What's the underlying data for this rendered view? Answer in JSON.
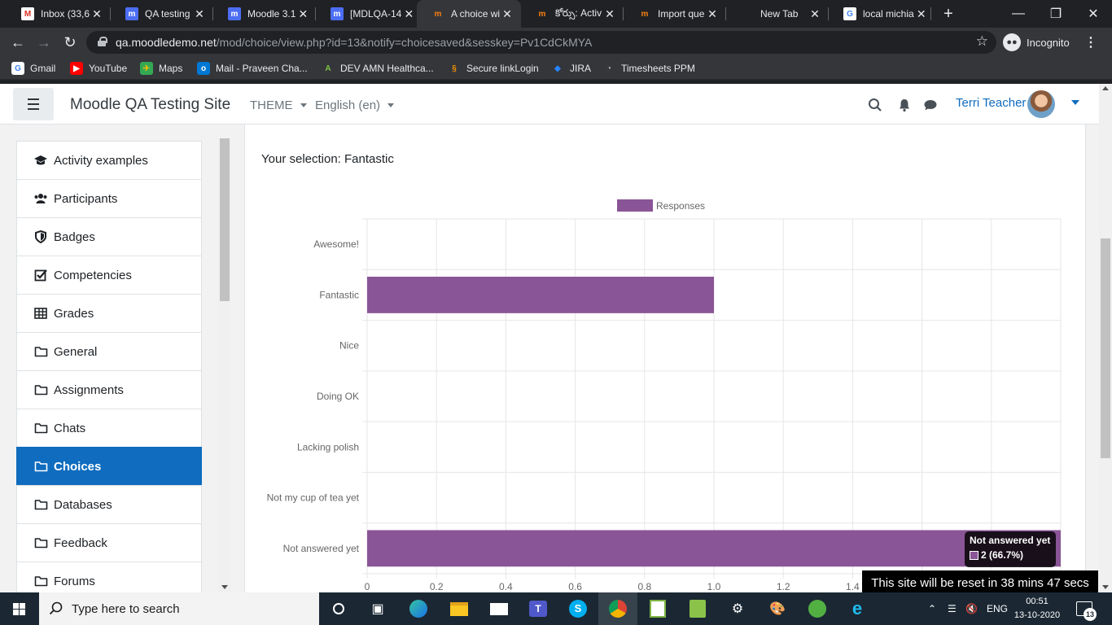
{
  "browser": {
    "tabs": [
      {
        "label": "Inbox (33,6",
        "icon_text": "M",
        "icon_bg": "#ffffff",
        "icon_color": "#d93025"
      },
      {
        "label": "QA testing",
        "icon_text": "m",
        "icon_bg": "#4c6ef5",
        "icon_color": "#ffffff"
      },
      {
        "label": "Moodle 3.1",
        "icon_text": "m",
        "icon_bg": "#4c6ef5",
        "icon_color": "#ffffff"
      },
      {
        "label": "[MDLQA-14",
        "icon_text": "m",
        "icon_bg": "#4c6ef5",
        "icon_color": "#ffffff"
      },
      {
        "label": "A choice wi",
        "icon_text": "m",
        "icon_bg": "transparent",
        "icon_color": "#f98012"
      },
      {
        "label": "కోర్సు: Activ",
        "icon_text": "m",
        "icon_bg": "transparent",
        "icon_color": "#f98012"
      },
      {
        "label": "Import que",
        "icon_text": "m",
        "icon_bg": "transparent",
        "icon_color": "#f98012"
      },
      {
        "label": "New Tab",
        "icon_text": "",
        "icon_bg": "transparent",
        "icon_color": "#ffffff"
      },
      {
        "label": "local michia",
        "icon_text": "G",
        "icon_bg": "#ffffff",
        "icon_color": "#4285f4"
      }
    ],
    "close_glyph": "✕",
    "new_tab": "+",
    "url_host": "qa.moodledemo.net",
    "url_path": "/mod/choice/view.php?id=13&notify=choicesaved&sesskey=Pv1CdCkMYA",
    "incognito": "Incognito",
    "bookmarks": [
      {
        "label": "Gmail",
        "icon_text": "G",
        "icon_bg": "#ffffff",
        "icon_color": "#4285f4"
      },
      {
        "label": "YouTube",
        "icon_text": "▶",
        "icon_bg": "#ff0000",
        "icon_color": "#ffffff"
      },
      {
        "label": "Maps",
        "icon_text": "✈",
        "icon_bg": "#34a853",
        "icon_color": "#fbbc04"
      },
      {
        "label": "Mail - Praveen Cha...",
        "icon_text": "o",
        "icon_bg": "#0078d4",
        "icon_color": "#ffffff"
      },
      {
        "label": "DEV AMN Healthca...",
        "icon_text": "A",
        "icon_bg": "transparent",
        "icon_color": "#7cc242"
      },
      {
        "label": "Secure linkLogin",
        "icon_text": "§",
        "icon_bg": "transparent",
        "icon_color": "#f29100"
      },
      {
        "label": "JIRA",
        "icon_text": "◆",
        "icon_bg": "transparent",
        "icon_color": "#2684ff"
      },
      {
        "label": "Timesheets PPM",
        "icon_text": "◔",
        "icon_bg": "transparent",
        "icon_color": "#bdc1c6"
      }
    ]
  },
  "moodle": {
    "site_name": "Moodle QA Testing Site",
    "theme_menu": "THEME",
    "language_menu": "English (en)",
    "user_name": "Terri Teacher",
    "sidebar": [
      {
        "label": "Activity examples",
        "icon": "graduation-cap-icon"
      },
      {
        "label": "Participants",
        "icon": "users-icon"
      },
      {
        "label": "Badges",
        "icon": "shield-icon"
      },
      {
        "label": "Competencies",
        "icon": "check-square-icon"
      },
      {
        "label": "Grades",
        "icon": "table-icon"
      },
      {
        "label": "General",
        "icon": "folder-icon"
      },
      {
        "label": "Assignments",
        "icon": "folder-icon"
      },
      {
        "label": "Chats",
        "icon": "folder-icon"
      },
      {
        "label": "Choices",
        "icon": "folder-icon",
        "active": true
      },
      {
        "label": "Databases",
        "icon": "folder-icon"
      },
      {
        "label": "Feedback",
        "icon": "folder-icon"
      },
      {
        "label": "Forums",
        "icon": "folder-icon"
      }
    ],
    "selection_text": "Your selection: Fantastic",
    "reset_notice": "This site will be reset in 38 mins 47 secs"
  },
  "chart_data": {
    "type": "bar",
    "orientation": "horizontal",
    "categories": [
      "Awesome!",
      "Fantastic",
      "Nice",
      "Doing OK",
      "Lacking polish",
      "Not my cup of tea yet",
      "Not answered yet"
    ],
    "series": [
      {
        "name": "Responses",
        "values": [
          0,
          1,
          0,
          0,
          0,
          0,
          2
        ],
        "color": "#8a5596"
      }
    ],
    "xlim": [
      0,
      2
    ],
    "xticks": [
      "0",
      "0.2",
      "0.4",
      "0.6",
      "0.8",
      "1.0",
      "1.2",
      "1.4"
    ],
    "grid": true,
    "legend": "top",
    "tooltip": {
      "title": "Not answered yet",
      "value": "2 (66.7%)"
    }
  },
  "taskbar": {
    "search_placeholder": "Type here to search",
    "language": "ENG",
    "time": "00:51",
    "date": "13-10-2020",
    "notifications": "13"
  }
}
